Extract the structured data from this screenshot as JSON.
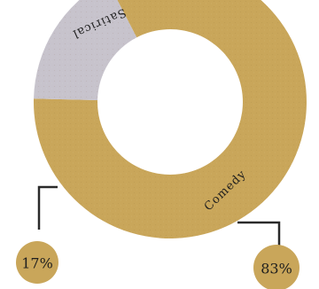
{
  "chart_data": {
    "type": "pie",
    "style": "donut",
    "slices": [
      {
        "label": "Comedy",
        "value": 83,
        "display": "83%",
        "color": "#c9a65a"
      },
      {
        "label": "Satirical",
        "value": 17,
        "display": "17%",
        "color": "#c7c3cc"
      }
    ],
    "leader_color": "#2a2a2a",
    "badge_color": "#c9a65a",
    "badge_text_color": "#1e1e1e"
  }
}
